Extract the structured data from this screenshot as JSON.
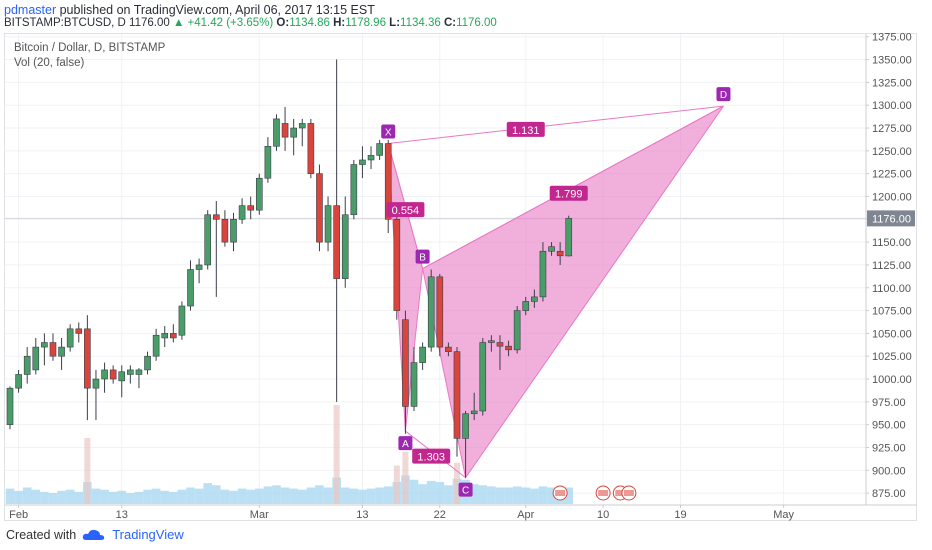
{
  "header": {
    "author": "pdmaster",
    "published": "published on TradingView.com, April 06, 2017 13:15 EST",
    "symbol": "BITSTAMP:BTCUSD, D",
    "last": "1176.00",
    "change": "▲ +41.42 (+3.65%)",
    "o_label": "O:",
    "o": "1134.86",
    "h_label": "H:",
    "h": "1178.96",
    "l_label": "L:",
    "l": "1134.36",
    "c_label": "C:",
    "c": "1176.00"
  },
  "legend": {
    "title": "Bitcoin / Dollar, D, BITSTAMP",
    "volume": "Vol (20, false)"
  },
  "footer": {
    "created_with": "Created with",
    "brand": "TradingView"
  },
  "colors": {
    "up": "#4a9d68",
    "down": "#d9453c",
    "pattern": "#e879c5",
    "pattern_label": "#c2278f",
    "point_label": "#9c27b0",
    "volume": "#9ed3f0"
  },
  "chart_data": {
    "type": "candlestick",
    "title": "Bitcoin / Dollar, D, BITSTAMP",
    "ylim": [
      862,
      1378
    ],
    "y_ticks": [
      875,
      900,
      925,
      950,
      975,
      1000,
      1025,
      1050,
      1075,
      1100,
      1125,
      1150,
      1175,
      1200,
      1225,
      1250,
      1275,
      1300,
      1325,
      1350,
      1375
    ],
    "y_tick_labels": [
      "875.00",
      "900.00",
      "925.00",
      "950.00",
      "975.00",
      "1000.00",
      "1025.00",
      "1050.00",
      "1075.00",
      "1100.00",
      "1125.00",
      "1150.00",
      "1175.00",
      "1200.00",
      "1225.00",
      "1250.00",
      "1275.00",
      "1300.00",
      "1325.00",
      "1350.00",
      "1375.00"
    ],
    "x_ticks": [
      {
        "date": "2017-02-01",
        "label": "Feb"
      },
      {
        "date": "2017-02-13",
        "label": "13"
      },
      {
        "date": "2017-03-01",
        "label": "Mar"
      },
      {
        "date": "2017-03-13",
        "label": "13"
      },
      {
        "date": "2017-03-22",
        "label": "22"
      },
      {
        "date": "2017-04-01",
        "label": "Apr"
      },
      {
        "date": "2017-04-10",
        "label": "10"
      },
      {
        "date": "2017-04-19",
        "label": "19"
      },
      {
        "date": "2017-05-01",
        "label": "May"
      }
    ],
    "x_range": [
      "2017-01-31",
      "2017-05-10"
    ],
    "last_price": 1176,
    "last_price_label": "1176.00",
    "candles": [
      [
        "2017-01-31",
        950,
        992,
        945,
        990
      ],
      [
        "2017-02-01",
        990,
        1010,
        985,
        1005
      ],
      [
        "2017-02-02",
        1005,
        1035,
        995,
        1025
      ],
      [
        "2017-02-03",
        1010,
        1045,
        1005,
        1035
      ],
      [
        "2017-02-04",
        1035,
        1050,
        1015,
        1040
      ],
      [
        "2017-02-05",
        1040,
        1050,
        1020,
        1025
      ],
      [
        "2017-02-06",
        1025,
        1045,
        1010,
        1035
      ],
      [
        "2017-02-07",
        1035,
        1060,
        1030,
        1055
      ],
      [
        "2017-02-08",
        1055,
        1062,
        1040,
        1050
      ],
      [
        "2017-02-09",
        1055,
        1070,
        955,
        990
      ],
      [
        "2017-02-10",
        990,
        1010,
        955,
        1000
      ],
      [
        "2017-02-11",
        1000,
        1018,
        985,
        1010
      ],
      [
        "2017-02-12",
        1010,
        1015,
        995,
        1000
      ],
      [
        "2017-02-13",
        998,
        1015,
        980,
        1008
      ],
      [
        "2017-02-14",
        1005,
        1015,
        995,
        1010
      ],
      [
        "2017-02-15",
        1005,
        1012,
        990,
        1010
      ],
      [
        "2017-02-16",
        1010,
        1030,
        1005,
        1025
      ],
      [
        "2017-02-17",
        1025,
        1055,
        1020,
        1048
      ],
      [
        "2017-02-18",
        1045,
        1058,
        1035,
        1050
      ],
      [
        "2017-02-19",
        1050,
        1060,
        1040,
        1045
      ],
      [
        "2017-02-20",
        1048,
        1085,
        1043,
        1080
      ],
      [
        "2017-02-21",
        1080,
        1130,
        1075,
        1120
      ],
      [
        "2017-02-22",
        1120,
        1132,
        1105,
        1125
      ],
      [
        "2017-02-23",
        1125,
        1185,
        1120,
        1180
      ],
      [
        "2017-02-24",
        1180,
        1195,
        1090,
        1175
      ],
      [
        "2017-02-25",
        1175,
        1185,
        1145,
        1150
      ],
      [
        "2017-02-26",
        1150,
        1182,
        1140,
        1175
      ],
      [
        "2017-02-27",
        1175,
        1198,
        1170,
        1190
      ],
      [
        "2017-02-28",
        1190,
        1200,
        1175,
        1185
      ],
      [
        "2017-03-01",
        1185,
        1225,
        1180,
        1220
      ],
      [
        "2017-03-02",
        1220,
        1265,
        1215,
        1255
      ],
      [
        "2017-03-03",
        1255,
        1290,
        1250,
        1285
      ],
      [
        "2017-03-04",
        1280,
        1298,
        1250,
        1265
      ],
      [
        "2017-03-05",
        1265,
        1285,
        1245,
        1275
      ],
      [
        "2017-03-06",
        1275,
        1285,
        1255,
        1280
      ],
      [
        "2017-03-07",
        1280,
        1285,
        1220,
        1225
      ],
      [
        "2017-03-08",
        1225,
        1235,
        1140,
        1150
      ],
      [
        "2017-03-09",
        1150,
        1200,
        1140,
        1190
      ],
      [
        "2017-03-10",
        1190,
        1350,
        975,
        1110
      ],
      [
        "2017-03-11",
        1110,
        1200,
        1100,
        1180
      ],
      [
        "2017-03-12",
        1180,
        1240,
        1175,
        1235
      ],
      [
        "2017-03-13",
        1235,
        1255,
        1220,
        1240
      ],
      [
        "2017-03-14",
        1240,
        1255,
        1230,
        1245
      ],
      [
        "2017-03-15",
        1245,
        1262,
        1240,
        1258
      ],
      [
        "2017-03-16",
        1258,
        1262,
        1160,
        1175
      ],
      [
        "2017-03-17",
        1175,
        1180,
        1065,
        1075
      ],
      [
        "2017-03-18",
        1065,
        1075,
        940,
        970
      ],
      [
        "2017-03-19",
        970,
        1035,
        965,
        1018
      ],
      [
        "2017-03-20",
        1018,
        1040,
        1010,
        1035
      ],
      [
        "2017-03-21",
        1035,
        1120,
        1030,
        1112
      ],
      [
        "2017-03-22",
        1112,
        1115,
        1025,
        1035
      ],
      [
        "2017-03-23",
        1035,
        1040,
        1025,
        1030
      ],
      [
        "2017-03-24",
        1030,
        1035,
        915,
        935
      ],
      [
        "2017-03-25",
        935,
        965,
        892,
        962
      ],
      [
        "2017-03-26",
        962,
        985,
        955,
        965
      ],
      [
        "2017-03-27",
        965,
        1045,
        960,
        1040
      ],
      [
        "2017-03-28",
        1040,
        1048,
        1030,
        1042
      ],
      [
        "2017-03-29",
        1040,
        1048,
        1010,
        1036
      ],
      [
        "2017-03-30",
        1036,
        1042,
        1025,
        1032
      ],
      [
        "2017-03-31",
        1032,
        1080,
        1028,
        1075
      ],
      [
        "2017-04-01",
        1075,
        1090,
        1070,
        1085
      ],
      [
        "2017-04-02",
        1085,
        1098,
        1078,
        1090
      ],
      [
        "2017-04-03",
        1090,
        1150,
        1085,
        1140
      ],
      [
        "2017-04-04",
        1140,
        1150,
        1135,
        1145
      ],
      [
        "2017-04-05",
        1140,
        1150,
        1125,
        1135
      ],
      [
        "2017-04-06",
        1134.86,
        1178.96,
        1134.36,
        1176
      ]
    ],
    "volume": [
      28,
      24,
      30,
      26,
      22,
      20,
      24,
      26,
      22,
      40,
      28,
      26,
      22,
      24,
      20,
      22,
      26,
      28,
      24,
      22,
      26,
      30,
      28,
      38,
      34,
      26,
      24,
      28,
      26,
      28,
      32,
      34,
      30,
      28,
      26,
      30,
      34,
      30,
      48,
      30,
      28,
      26,
      28,
      30,
      32,
      40,
      52,
      44,
      36,
      42,
      40,
      34,
      46,
      44,
      36,
      34,
      32,
      30,
      30,
      32,
      30,
      28,
      32,
      30,
      28,
      30
    ],
    "volume_spikes": [
      {
        "date": "2017-02-09",
        "value": 120
      },
      {
        "date": "2017-03-10",
        "value": 180
      },
      {
        "date": "2017-03-17",
        "value": 70
      },
      {
        "date": "2017-03-18",
        "value": 95
      },
      {
        "date": "2017-03-24",
        "value": 75
      }
    ],
    "pattern": {
      "name": "bat",
      "points": [
        {
          "label": "X",
          "date": "2017-03-16",
          "price": 1258
        },
        {
          "label": "A",
          "date": "2017-03-18",
          "price": 943
        },
        {
          "label": "B",
          "date": "2017-03-20",
          "price": 1121
        },
        {
          "label": "C",
          "date": "2017-03-25",
          "price": 892
        },
        {
          "label": "D",
          "date": "2017-04-24",
          "price": 1299
        }
      ],
      "ratios": [
        {
          "label": "0.554",
          "date": "2017-03-18",
          "price": 1185
        },
        {
          "label": "1.303",
          "date": "2017-03-21",
          "price": 915
        },
        {
          "label": "1.799",
          "date": "2017-04-06",
          "price": 1203
        },
        {
          "label": "1.131",
          "date": "2017-04-01",
          "price": 1273
        }
      ]
    },
    "events": [
      {
        "date": "2017-04-05",
        "label": "US"
      },
      {
        "date": "2017-04-10",
        "label": "US"
      },
      {
        "date": "2017-04-12",
        "label": "US"
      },
      {
        "date": "2017-04-13",
        "label": "US"
      }
    ]
  }
}
